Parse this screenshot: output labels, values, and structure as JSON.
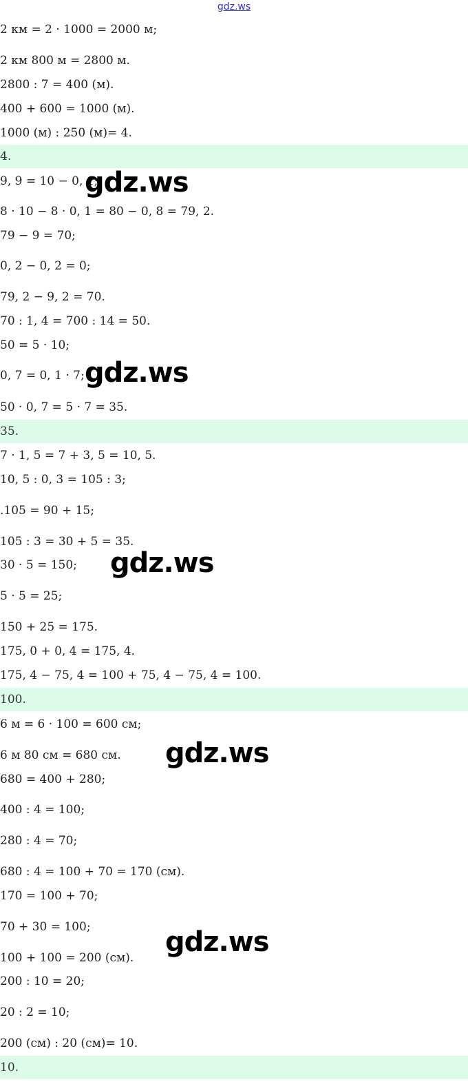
{
  "header": {
    "site_link": "gdz.ws"
  },
  "watermark": "gdz.ws",
  "blocks": [
    {
      "lines": [
        "2 км = 2 · 1000 = 2000 м;",
        "2 км 800 м = 2800 м.",
        "2800 : 7 = 400 (м).",
        "400 + 600 = 1000 (м).",
        "1000 (м) : 250 (м)= 4."
      ],
      "answer": "4."
    },
    {
      "lines": [
        "9, 9 = 10 − 0, 1;",
        "8 · 10 − 8 · 0, 1 = 80 − 0, 8 = 79, 2.",
        "79 − 9 = 70;",
        "0, 2 − 0, 2 = 0;",
        "79, 2 − 9, 2 = 70.",
        "70 : 1, 4 = 700 : 14 = 50.",
        "50 = 5 · 10;",
        "0, 7 = 0, 1 · 7;",
        "50 · 0, 7 = 5 · 7 = 35."
      ],
      "answer": "35."
    },
    {
      "lines": [
        "7 · 1, 5 = 7 + 3, 5 = 10, 5.",
        "10, 5 : 0, 3 = 105 : 3;",
        ".105 = 90 + 15;",
        "105 : 3 = 30 + 5 = 35.",
        "30 · 5 = 150;",
        "5 · 5 = 25;",
        "150 + 25 = 175.",
        "175, 0 + 0, 4 = 175, 4.",
        "175, 4 − 75, 4 = 100 + 75, 4 − 75, 4 = 100."
      ],
      "answer": "100."
    },
    {
      "lines": [
        "6 м = 6 · 100 = 600 см;",
        "6 м 80 см = 680 см.",
        "680 = 400 + 280;",
        "400 : 4 = 100;",
        "280 : 4 = 70;",
        "680 : 4 = 100 + 70 = 170 (см).",
        "170 = 100 + 70;",
        "70 + 30 = 100;",
        "100 + 100 = 200 (см).",
        "200 : 10 = 20;",
        "20 : 2 = 10;",
        "200 (см) : 20 (см)= 10."
      ],
      "answer": "10."
    }
  ],
  "colors": {
    "answer_band": "#dcfbe8",
    "link": "#3333cc"
  }
}
